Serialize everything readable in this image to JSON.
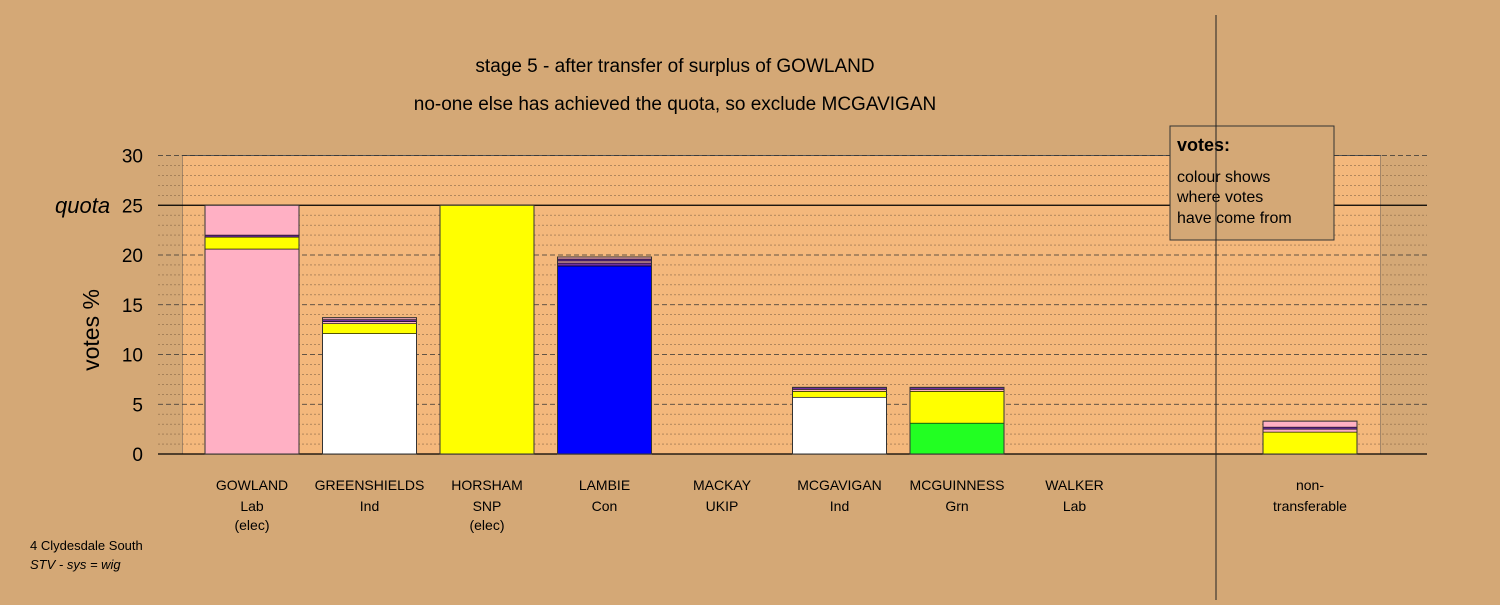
{
  "chart_data": {
    "type": "bar",
    "title": "stage 5 - after transfer of surplus of GOWLAND",
    "subtitle": "no-one else has achieved the quota, so exclude MCGAVIGAN",
    "ylabel": "votes %",
    "ylim": [
      0,
      30
    ],
    "yticks": [
      "0",
      "5",
      "10",
      "15",
      "20",
      "25",
      "30"
    ],
    "quota": 25,
    "quota_label": "quota",
    "grid": true,
    "legend": {
      "title": "votes:",
      "lines": [
        "colour shows",
        "where votes",
        "have come from"
      ],
      "placement": "top-right"
    },
    "candidates": [
      {
        "name": "GOWLAND",
        "party": "Lab",
        "status": "(elec)",
        "segments": [
          {
            "color": "#ffb0c4",
            "value": 20.6
          },
          {
            "color": "#ffff00",
            "value": 1.2
          },
          {
            "color": "#7030a0",
            "value": 0.2
          },
          {
            "color": "#ffb0c4",
            "value": 3.0
          }
        ]
      },
      {
        "name": "GREENSHIELDS",
        "party": "Ind",
        "status": "",
        "segments": [
          {
            "color": "#ffffff",
            "value": 12.1
          },
          {
            "color": "#ffff00",
            "value": 1.0
          },
          {
            "color": "#ffb0c4",
            "value": 0.2
          },
          {
            "color": "#7030a0",
            "value": 0.2
          },
          {
            "color": "#ffb0c4",
            "value": 0.2
          }
        ]
      },
      {
        "name": "HORSHAM",
        "party": "SNP",
        "status": "(elec)",
        "segments": [
          {
            "color": "#ffff00",
            "value": 25.0
          }
        ]
      },
      {
        "name": "LAMBIE",
        "party": "Con",
        "status": "",
        "segments": [
          {
            "color": "#0000ff",
            "value": 18.9
          },
          {
            "color": "#7030a0",
            "value": 0.3
          },
          {
            "color": "#ffb0c4",
            "value": 0.2
          },
          {
            "color": "#7030a0",
            "value": 0.2
          },
          {
            "color": "#ffb0c4",
            "value": 0.2
          }
        ]
      },
      {
        "name": "MACKAY",
        "party": "UKIP",
        "status": "",
        "segments": []
      },
      {
        "name": "MCGAVIGAN",
        "party": "Ind",
        "status": "",
        "segments": [
          {
            "color": "#ffffff",
            "value": 5.7
          },
          {
            "color": "#ffff00",
            "value": 0.6
          },
          {
            "color": "#ffb0c4",
            "value": 0.2
          },
          {
            "color": "#7030a0",
            "value": 0.2
          }
        ]
      },
      {
        "name": "MCGUINNESS",
        "party": "Grn",
        "status": "",
        "segments": [
          {
            "color": "#22ff22",
            "value": 3.1
          },
          {
            "color": "#ffff00",
            "value": 3.2
          },
          {
            "color": "#ffb0c4",
            "value": 0.2
          },
          {
            "color": "#7030a0",
            "value": 0.2
          }
        ]
      },
      {
        "name": "WALKER",
        "party": "Lab",
        "status": "",
        "segments": []
      }
    ],
    "nontransferable": {
      "label1": "non-",
      "label2": "transferable",
      "segments": [
        {
          "color": "#ffff00",
          "value": 2.2
        },
        {
          "color": "#ffb0c4",
          "value": 0.3
        },
        {
          "color": "#7030a0",
          "value": 0.2
        },
        {
          "color": "#ffb0c4",
          "value": 0.6
        }
      ]
    }
  },
  "footer": {
    "ward": "4 Clydesdale South",
    "system": "STV - sys = wig"
  }
}
